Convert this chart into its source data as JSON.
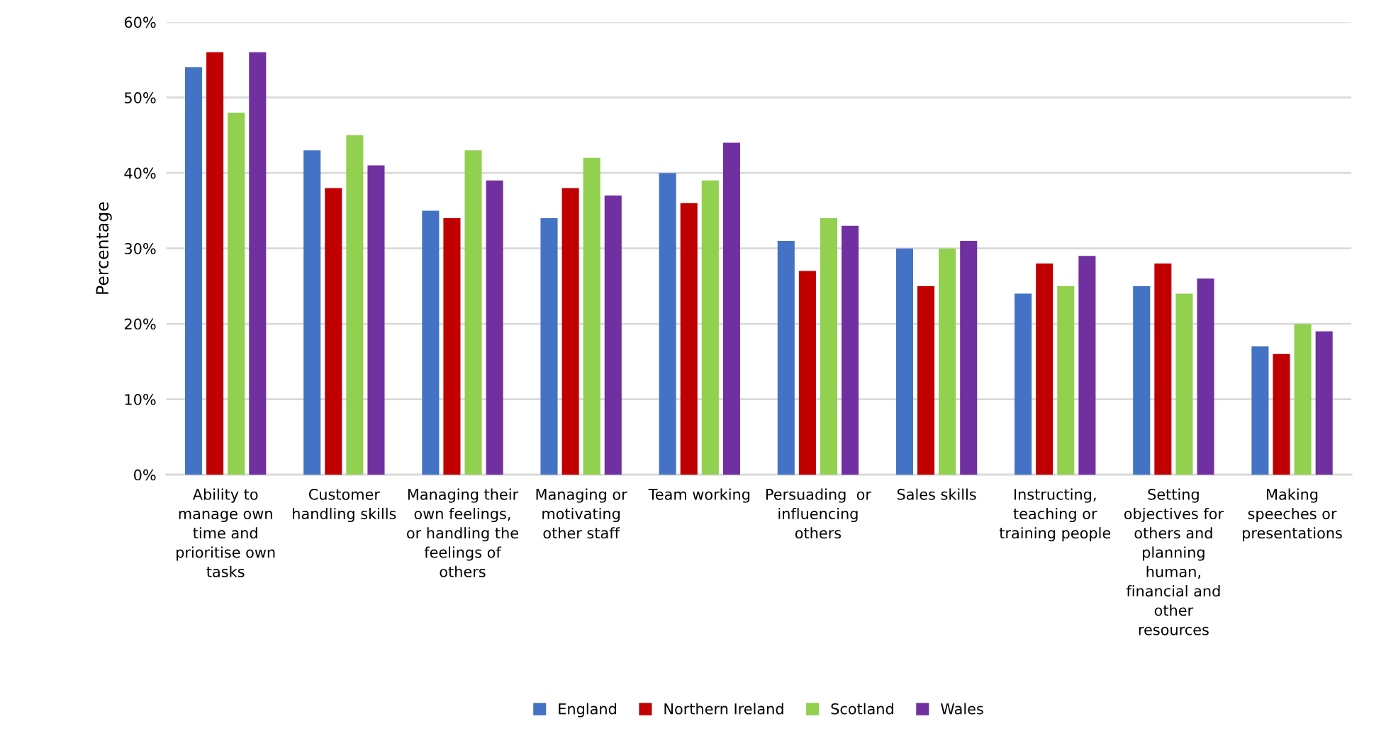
{
  "chart_data": {
    "type": "bar",
    "ylabel": "Percentage",
    "categories": [
      "Ability to\nmanage own\ntime and\nprioritise own\ntasks",
      "Customer\nhandling skills",
      "Managing their\nown feelings,\nor handling the\nfeelings of\nothers",
      "Managing or\nmotivating\nother staff",
      "Team working",
      "Persuading  or\ninfluencing\nothers",
      "Sales skills",
      "Instructing,\nteaching or\ntraining people",
      "Setting\nobjectives for\nothers and\nplanning\nhuman,\nfinancial and\nother\nresources",
      "Making\nspeeches or\npresentations"
    ],
    "series": [
      {
        "name": "England",
        "color": "#4472c4",
        "values": [
          54,
          43,
          35,
          34,
          40,
          31,
          30,
          24,
          25,
          17
        ]
      },
      {
        "name": "Northern Ireland",
        "color": "#c00000",
        "values": [
          56,
          38,
          34,
          38,
          36,
          27,
          25,
          28,
          28,
          16
        ]
      },
      {
        "name": "Scotland",
        "color": "#92d050",
        "values": [
          48,
          45,
          43,
          42,
          39,
          34,
          30,
          25,
          24,
          20
        ]
      },
      {
        "name": "Wales",
        "color": "#7030a0",
        "values": [
          56,
          41,
          39,
          37,
          44,
          33,
          31,
          29,
          26,
          19
        ]
      }
    ],
    "ylim": [
      0,
      60
    ],
    "yticks": [
      {
        "value": 0,
        "label": "0%"
      },
      {
        "value": 10,
        "label": "10%"
      },
      {
        "value": 20,
        "label": "20%"
      },
      {
        "value": 30,
        "label": "30%"
      },
      {
        "value": 40,
        "label": "40%"
      },
      {
        "value": 50,
        "label": "50%"
      },
      {
        "value": 60,
        "label": "60%"
      }
    ],
    "grid": "y",
    "legend": "bottom"
  }
}
